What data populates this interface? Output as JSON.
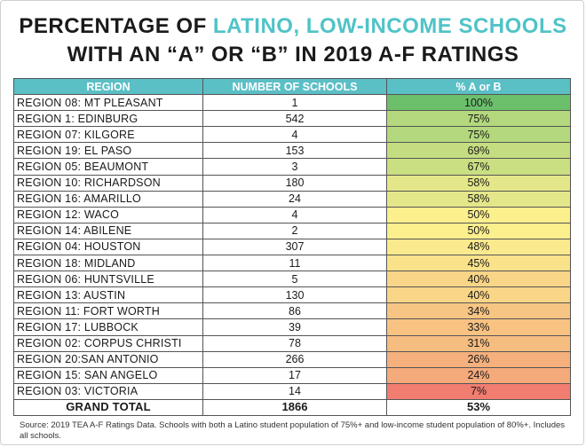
{
  "title_part1": "PERCENTAGE OF ",
  "title_highlight": "LATINO, LOW-INCOME SCHOOLS",
  "title_line2": "WITH AN “A” OR “B” IN 2019 A-F RATINGS",
  "source": "Source: 2019 TEA A-F Ratings Data. Schools with both a Latino student population of 75%+ and low-income student population of 80%+. Includes all schools.",
  "colors": {
    "title_accent": "#4fc3c8",
    "header_bg": "#5bbfc6",
    "low": "#ef6b6b",
    "mid": "#fbef8e",
    "high": "#6cc06c"
  },
  "chart_data": {
    "type": "table",
    "columns": [
      "REGION",
      "NUMBER OF SCHOOLS",
      "% A or B"
    ],
    "rows": [
      {
        "region": "REGION 08: MT PLEASANT",
        "schools": "1",
        "pct": "100%",
        "value": 100
      },
      {
        "region": "REGION 1: EDINBURG",
        "schools": "542",
        "pct": "75%",
        "value": 75
      },
      {
        "region": "REGION 07: KILGORE",
        "schools": "4",
        "pct": "75%",
        "value": 75
      },
      {
        "region": "REGION 19: EL PASO",
        "schools": "153",
        "pct": "69%",
        "value": 69
      },
      {
        "region": "REGION 05: BEAUMONT",
        "schools": "3",
        "pct": "67%",
        "value": 67
      },
      {
        "region": "REGION 10: RICHARDSON",
        "schools": "180",
        "pct": "58%",
        "value": 58
      },
      {
        "region": "REGION 16: AMARILLO",
        "schools": "24",
        "pct": "58%",
        "value": 58
      },
      {
        "region": "REGION 12: WACO",
        "schools": "4",
        "pct": "50%",
        "value": 50
      },
      {
        "region": "REGION 14: ABILENE",
        "schools": "2",
        "pct": "50%",
        "value": 50
      },
      {
        "region": "REGION 04: HOUSTON",
        "schools": "307",
        "pct": "48%",
        "value": 48
      },
      {
        "region": "REGION 18: MIDLAND",
        "schools": "11",
        "pct": "45%",
        "value": 45
      },
      {
        "region": "REGION 06: HUNTSVILLE",
        "schools": "5",
        "pct": "40%",
        "value": 40
      },
      {
        "region": "REGION 13: AUSTIN",
        "schools": "130",
        "pct": "40%",
        "value": 40
      },
      {
        "region": "REGION 11: FORT WORTH",
        "schools": "86",
        "pct": "34%",
        "value": 34
      },
      {
        "region": "REGION 17: LUBBOCK",
        "schools": "39",
        "pct": "33%",
        "value": 33
      },
      {
        "region": "REGION 02: CORPUS CHRISTI",
        "schools": "78",
        "pct": "31%",
        "value": 31
      },
      {
        "region": "REGION 20:SAN ANTONIO",
        "schools": "266",
        "pct": "26%",
        "value": 26
      },
      {
        "region": "REGION 15: SAN ANGELO",
        "schools": "17",
        "pct": "24%",
        "value": 24
      },
      {
        "region": "REGION 03: VICTORIA",
        "schools": "14",
        "pct": "7%",
        "value": 7
      }
    ],
    "total": {
      "label": "GRAND TOTAL",
      "schools": "1866",
      "pct": "53%"
    }
  }
}
